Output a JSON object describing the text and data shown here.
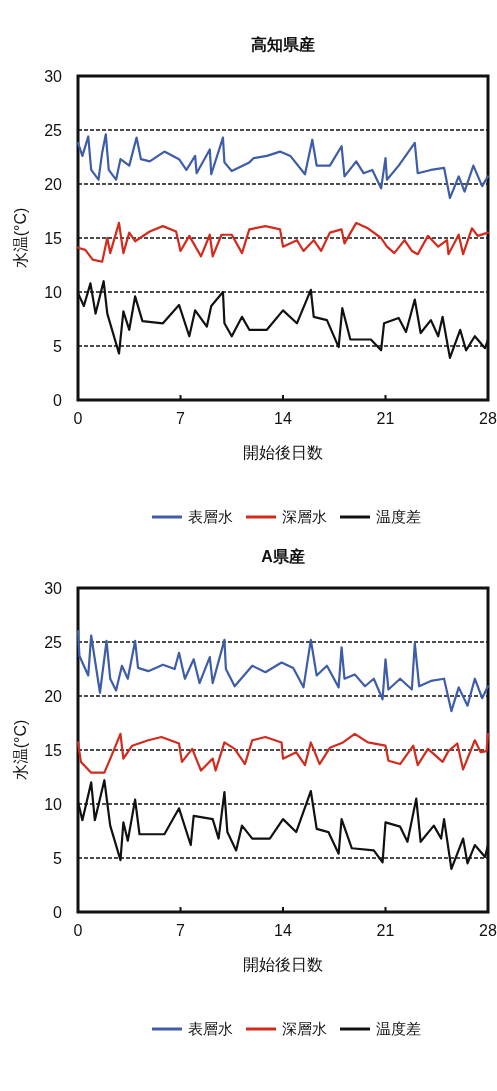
{
  "chart_data": [
    {
      "type": "line",
      "title": "高知県産",
      "xlabel": "開始後日数",
      "ylabel": "水温(°C)",
      "xlim": [
        0,
        28
      ],
      "xticks": [
        0,
        7,
        14,
        21,
        28
      ],
      "ylim": [
        0,
        30
      ],
      "yticks": [
        0,
        5,
        10,
        15,
        20,
        25,
        30
      ],
      "grid": "y",
      "legend": "bottom",
      "line_style": "solid",
      "marker": "none",
      "series": [
        {
          "name": "表層水",
          "color": "#3d5da8",
          "x": [
            0,
            0.3,
            0.7,
            0.9,
            1.4,
            1.65,
            1.9,
            2.1,
            2.6,
            2.9,
            3.5,
            4.0,
            4.3,
            4.9,
            5.9,
            6.9,
            7.4,
            8.0,
            8.1,
            9.0,
            9.1,
            9.9,
            10.0,
            10.5,
            11.7,
            12.0,
            12.9,
            13.8,
            14.5,
            15.5,
            16.0,
            16.3,
            17.2,
            18.0,
            18.2,
            19.0,
            19.5,
            20.1,
            20.7,
            21.0,
            21.1,
            21.9,
            23.0,
            23.2,
            24.1,
            25.0,
            25.4,
            26.0,
            26.4,
            27.0,
            27.6,
            28.0
          ],
          "values": [
            23.8,
            22.6,
            24.4,
            21.3,
            20.4,
            22.9,
            24.6,
            21.3,
            20.4,
            22.3,
            21.7,
            24.3,
            22.3,
            22.1,
            23.0,
            22.3,
            21.3,
            22.6,
            21.0,
            23.2,
            20.9,
            24.3,
            22.0,
            21.2,
            22.0,
            22.4,
            22.6,
            23.0,
            22.6,
            20.9,
            24.1,
            21.7,
            21.7,
            23.5,
            20.7,
            22.1,
            21.0,
            21.3,
            19.6,
            22.4,
            20.4,
            21.7,
            23.8,
            21.0,
            21.3,
            21.5,
            18.7,
            20.7,
            19.3,
            21.7,
            19.8,
            20.7
          ]
        },
        {
          "name": "深層水",
          "color": "#d42a1c",
          "x": [
            0,
            0.5,
            1.0,
            1.65,
            2.0,
            2.2,
            2.8,
            3.1,
            3.5,
            3.9,
            4.9,
            5.8,
            6.7,
            7.0,
            7.6,
            8.4,
            9.0,
            9.2,
            9.8,
            10.5,
            11.2,
            11.7,
            12.8,
            13.8,
            14.0,
            14.95,
            15.4,
            16.1,
            16.6,
            17.2,
            18.0,
            18.2,
            19.0,
            19.8,
            20.7,
            21.1,
            21.6,
            22.3,
            22.8,
            23.2,
            23.9,
            24.6,
            25.2,
            25.3,
            26.0,
            26.3,
            26.9,
            27.3,
            28.0
          ],
          "values": [
            14.1,
            13.9,
            13.0,
            12.8,
            15.0,
            13.6,
            16.4,
            13.6,
            15.5,
            14.7,
            15.6,
            16.1,
            15.6,
            13.8,
            15.2,
            13.3,
            15.3,
            13.3,
            15.3,
            15.3,
            13.6,
            15.8,
            16.1,
            15.8,
            14.2,
            14.8,
            13.8,
            14.8,
            13.8,
            15.5,
            15.8,
            14.5,
            16.4,
            15.9,
            15.0,
            14.2,
            13.6,
            14.8,
            13.8,
            13.5,
            15.2,
            14.2,
            14.8,
            13.5,
            15.3,
            13.5,
            15.9,
            15.2,
            15.5
          ]
        },
        {
          "name": "温度差",
          "color": "#111111",
          "x": [
            0,
            0.4,
            0.85,
            1.2,
            1.75,
            2.0,
            2.8,
            3.1,
            3.5,
            3.9,
            4.4,
            5.8,
            6.9,
            7.6,
            8.0,
            8.8,
            9.1,
            9.9,
            10.0,
            10.5,
            11.2,
            11.7,
            12.9,
            14.0,
            14.95,
            15.9,
            16.1,
            17.0,
            17.8,
            18.05,
            18.6,
            20.0,
            20.7,
            20.9,
            21.9,
            22.4,
            23.0,
            23.4,
            24.1,
            24.6,
            24.9,
            25.4,
            26.1,
            26.5,
            27.1,
            27.8,
            28.0
          ],
          "values": [
            9.9,
            8.7,
            10.8,
            8.0,
            11.0,
            8.0,
            4.3,
            8.2,
            6.5,
            9.6,
            7.3,
            7.1,
            8.8,
            5.9,
            8.3,
            6.8,
            8.7,
            10.0,
            7.1,
            5.9,
            7.7,
            6.5,
            6.5,
            8.3,
            7.1,
            10.2,
            7.7,
            7.4,
            4.9,
            8.5,
            5.6,
            5.6,
            4.6,
            7.1,
            7.6,
            6.3,
            9.3,
            6.2,
            7.4,
            5.9,
            7.7,
            3.9,
            6.5,
            4.6,
            5.9,
            4.8,
            5.6
          ]
        }
      ]
    },
    {
      "type": "line",
      "title": "A県産",
      "xlabel": "開始後日数",
      "ylabel": "水温(°C)",
      "xlim": [
        0,
        28
      ],
      "xticks": [
        0,
        7,
        14,
        21,
        28
      ],
      "ylim": [
        0,
        30
      ],
      "yticks": [
        0,
        5,
        10,
        15,
        20,
        25,
        30
      ],
      "grid": "y",
      "legend": "bottom",
      "line_style": "solid",
      "marker": "none",
      "series": [
        {
          "name": "表層水",
          "color": "#3d5da8",
          "x": [
            0,
            0.1,
            0.7,
            0.9,
            1.5,
            1.95,
            2.2,
            2.6,
            3.0,
            3.4,
            3.9,
            4.1,
            4.8,
            5.8,
            6.6,
            6.9,
            7.3,
            7.9,
            8.3,
            9.0,
            9.2,
            10.0,
            10.1,
            10.7,
            11.9,
            12.8,
            13.9,
            14.7,
            15.4,
            15.9,
            16.3,
            17.0,
            17.8,
            18.0,
            18.2,
            18.9,
            19.6,
            20.2,
            20.8,
            21.0,
            21.2,
            22.0,
            22.8,
            23.0,
            23.3,
            24.1,
            25.0,
            25.5,
            26.0,
            26.6,
            27.1,
            27.6,
            28.0
          ],
          "values": [
            26.0,
            23.7,
            21.9,
            25.6,
            20.3,
            25.1,
            21.6,
            20.5,
            22.8,
            21.6,
            25.1,
            22.6,
            22.3,
            22.9,
            22.5,
            24.0,
            21.6,
            23.4,
            21.2,
            23.6,
            21.2,
            25.2,
            22.5,
            20.9,
            22.8,
            22.2,
            23.1,
            22.6,
            20.8,
            25.2,
            21.9,
            22.8,
            20.8,
            24.5,
            21.6,
            22.0,
            20.9,
            21.6,
            19.7,
            23.4,
            20.6,
            21.6,
            20.6,
            24.9,
            20.9,
            21.4,
            21.6,
            18.6,
            20.8,
            19.1,
            21.6,
            19.8,
            20.9
          ]
        },
        {
          "name": "深層水",
          "color": "#d42a1c",
          "x": [
            0,
            0.2,
            0.9,
            1.8,
            2.3,
            2.9,
            3.1,
            3.7,
            4.8,
            5.7,
            6.9,
            7.1,
            7.8,
            8.4,
            9.2,
            9.4,
            10.0,
            10.7,
            11.4,
            11.9,
            12.8,
            13.9,
            14.0,
            14.9,
            15.5,
            15.9,
            16.5,
            17.2,
            18.1,
            18.9,
            19.8,
            21.0,
            21.2,
            22.0,
            22.9,
            23.2,
            23.9,
            24.9,
            25.3,
            25.9,
            26.3,
            27.1,
            27.5,
            27.9,
            28.0
          ],
          "values": [
            15.7,
            13.9,
            12.9,
            12.9,
            14.5,
            16.5,
            14.2,
            15.4,
            15.9,
            16.2,
            15.6,
            13.9,
            15.1,
            13.1,
            14.2,
            13.1,
            15.7,
            15.1,
            13.7,
            15.9,
            16.2,
            15.7,
            14.2,
            14.8,
            13.6,
            15.7,
            13.7,
            15.2,
            15.7,
            16.5,
            15.7,
            15.4,
            14.0,
            13.7,
            15.4,
            13.6,
            15.1,
            13.9,
            14.9,
            15.6,
            13.2,
            15.9,
            14.8,
            14.9,
            16.5
          ]
        },
        {
          "name": "温度差",
          "color": "#111111",
          "x": [
            0,
            0.3,
            0.9,
            1.15,
            1.8,
            2.2,
            2.9,
            3.1,
            3.4,
            3.9,
            4.2,
            5.9,
            6.9,
            7.7,
            7.9,
            9.2,
            9.6,
            10.0,
            10.2,
            10.8,
            11.2,
            11.9,
            13.1,
            14.0,
            14.9,
            15.9,
            16.3,
            17.1,
            17.8,
            18.0,
            18.7,
            20.2,
            20.8,
            21.0,
            22.0,
            22.5,
            23.1,
            23.4,
            24.3,
            24.8,
            25.0,
            25.5,
            26.3,
            26.6,
            27.1,
            27.8,
            28.0
          ],
          "values": [
            10.2,
            8.5,
            12.0,
            8.5,
            12.2,
            8.0,
            4.8,
            8.3,
            6.6,
            10.4,
            7.2,
            7.2,
            9.6,
            6.2,
            8.9,
            8.6,
            6.8,
            11.1,
            7.4,
            5.7,
            8.0,
            6.8,
            6.8,
            8.6,
            7.4,
            11.2,
            7.7,
            7.4,
            5.4,
            8.6,
            5.9,
            5.7,
            4.6,
            8.3,
            7.9,
            6.5,
            10.5,
            6.5,
            8.0,
            6.8,
            8.6,
            4.0,
            6.8,
            4.5,
            6.2,
            5.1,
            6.2
          ]
        }
      ]
    }
  ]
}
